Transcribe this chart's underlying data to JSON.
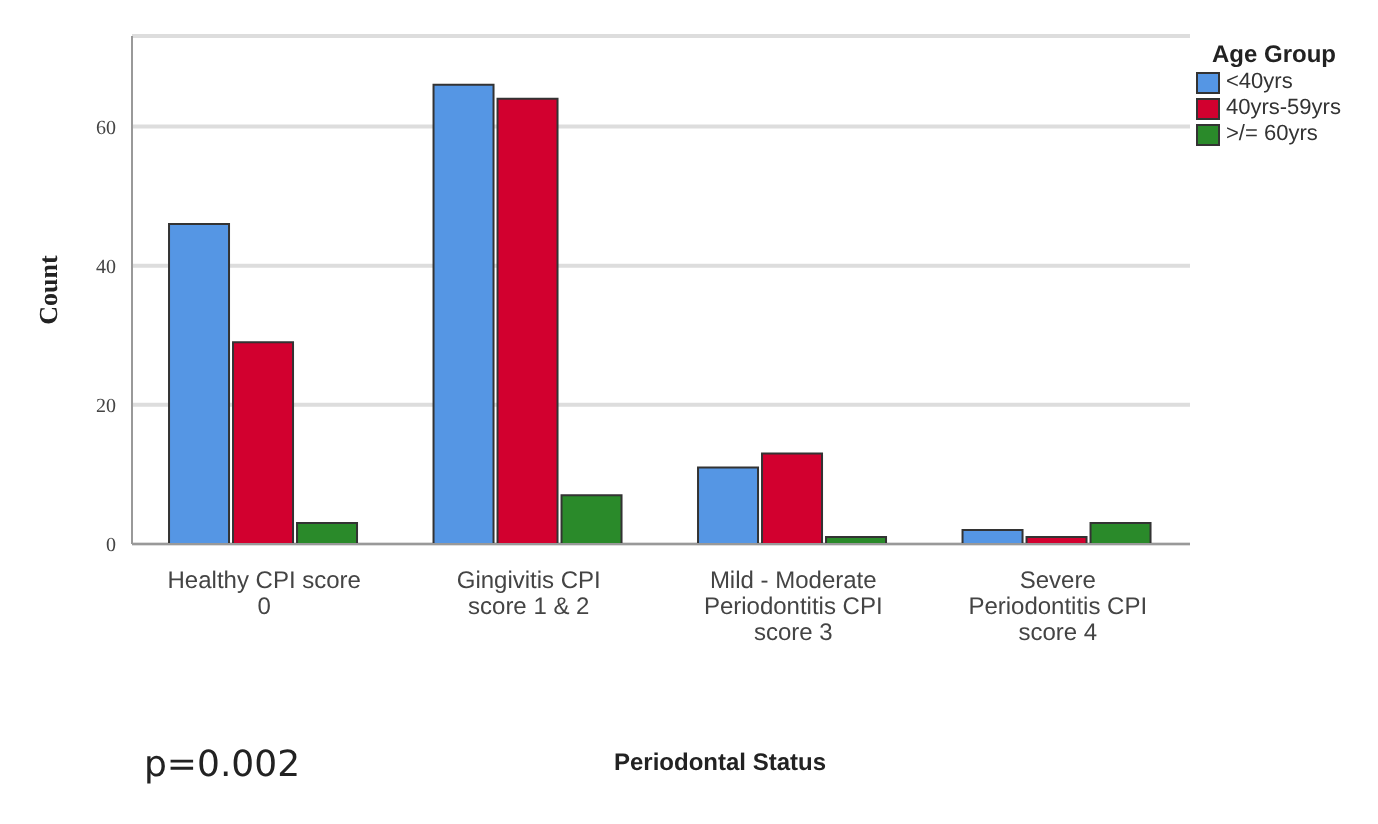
{
  "chart_data": {
    "type": "bar",
    "xlabel": "Periodontal Status",
    "ylabel": "Count",
    "legend_title": "Age Group",
    "categories": [
      "Healthy CPI score 0",
      "Gingivitis CPI score 1 & 2",
      "Mild - Moderate Periodontitis CPI score 3",
      "Severe Periodontitis CPI score 4"
    ],
    "series": [
      {
        "name": "<40yrs",
        "color": "#5596e4",
        "values": [
          46,
          66,
          11,
          2
        ]
      },
      {
        "name": "40yrs-59yrs",
        "color": "#d2002f",
        "values": [
          29,
          64,
          13,
          1
        ]
      },
      {
        "name": ">/= 60yrs",
        "color": "#2a8a2a",
        "values": [
          3,
          7,
          1,
          3
        ]
      }
    ],
    "ylim": [
      0,
      73
    ],
    "yticks": [
      0,
      20,
      40,
      60
    ],
    "grid": "y",
    "legend": "top right",
    "annotations": [
      "p=0.002"
    ]
  }
}
